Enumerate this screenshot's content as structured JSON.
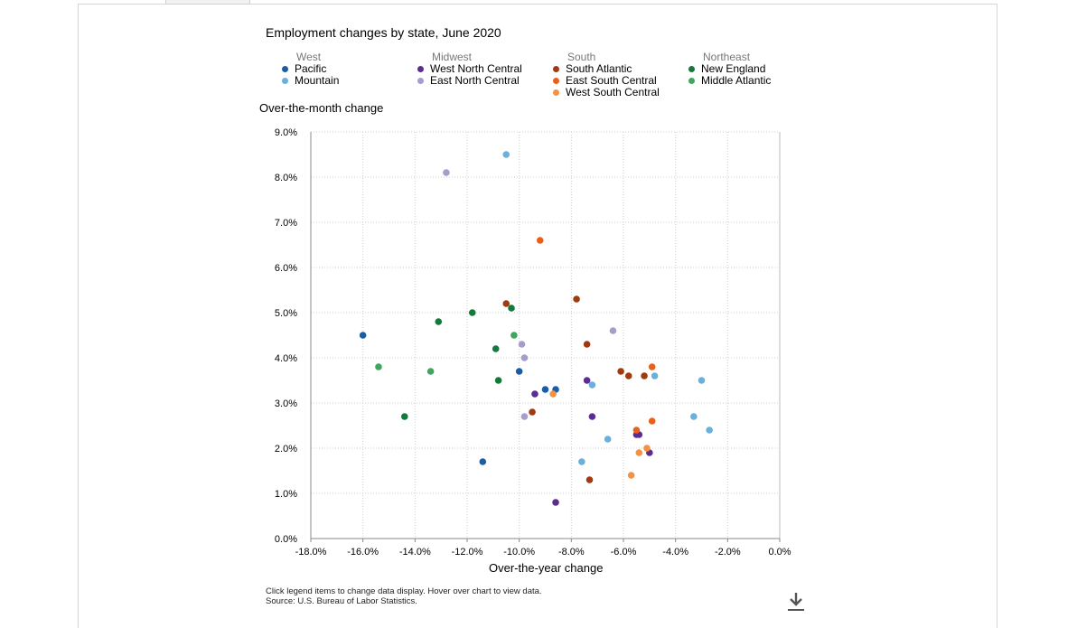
{
  "title": "Employment changes by state, June 2020",
  "legend": [
    {
      "group": "West",
      "items": [
        {
          "name": "Pacific",
          "color": "#1a5da6"
        },
        {
          "name": "Mountain",
          "color": "#6bb0dd"
        }
      ]
    },
    {
      "group": "Midwest",
      "items": [
        {
          "name": "West North Central",
          "color": "#5b2d91"
        },
        {
          "name": "East North Central",
          "color": "#a79ccc"
        }
      ]
    },
    {
      "group": "South",
      "items": [
        {
          "name": "South Atlantic",
          "color": "#a13a0f"
        },
        {
          "name": "East South Central",
          "color": "#e8601c"
        },
        {
          "name": "West South Central",
          "color": "#f39244"
        }
      ]
    },
    {
      "group": "Northeast",
      "items": [
        {
          "name": "New England",
          "color": "#137a3c"
        },
        {
          "name": "Middle Atlantic",
          "color": "#41a65d"
        }
      ]
    }
  ],
  "footnote": {
    "line1": "Click legend items to change data display. Hover over chart to view data.",
    "line2": "Source: U.S. Bureau of Labor Statistics."
  },
  "download_icon": "download-icon",
  "chart_data": {
    "type": "scatter",
    "title": "Employment changes by state, June 2020",
    "xlabel": "Over-the-year change",
    "ylabel": "Over-the-month change",
    "xlim": [
      -18,
      0
    ],
    "ylim": [
      0,
      9
    ],
    "xticks": [
      "-18.0%",
      "-16.0%",
      "-14.0%",
      "-12.0%",
      "-10.0%",
      "-8.0%",
      "-6.0%",
      "-4.0%",
      "-2.0%",
      "0.0%"
    ],
    "yticks": [
      "0.0%",
      "1.0%",
      "2.0%",
      "3.0%",
      "4.0%",
      "5.0%",
      "6.0%",
      "7.0%",
      "8.0%",
      "9.0%"
    ],
    "grid": true,
    "series": [
      {
        "name": "Pacific",
        "points": [
          [
            -16.0,
            4.5
          ],
          [
            -11.4,
            1.7
          ],
          [
            -10.0,
            3.7
          ],
          [
            -9.0,
            3.3
          ],
          [
            -8.6,
            3.3
          ]
        ]
      },
      {
        "name": "Mountain",
        "points": [
          [
            -10.5,
            8.5
          ],
          [
            -7.6,
            1.7
          ],
          [
            -7.2,
            3.4
          ],
          [
            -6.6,
            2.2
          ],
          [
            -4.8,
            3.6
          ],
          [
            -3.3,
            2.7
          ],
          [
            -3.0,
            3.5
          ],
          [
            -2.7,
            2.4
          ]
        ]
      },
      {
        "name": "West North Central",
        "points": [
          [
            -9.4,
            3.2
          ],
          [
            -8.6,
            0.8
          ],
          [
            -7.4,
            3.5
          ],
          [
            -7.2,
            2.7
          ],
          [
            -5.5,
            2.3
          ],
          [
            -5.4,
            2.3
          ],
          [
            -5.0,
            1.9
          ]
        ]
      },
      {
        "name": "East North Central",
        "points": [
          [
            -12.8,
            8.1
          ],
          [
            -9.9,
            4.3
          ],
          [
            -9.8,
            4.0
          ],
          [
            -9.8,
            2.7
          ],
          [
            -6.4,
            4.6
          ]
        ]
      },
      {
        "name": "South Atlantic",
        "points": [
          [
            -10.5,
            5.2
          ],
          [
            -9.5,
            2.8
          ],
          [
            -7.8,
            5.3
          ],
          [
            -7.4,
            4.3
          ],
          [
            -7.3,
            1.3
          ],
          [
            -6.1,
            3.7
          ],
          [
            -5.8,
            3.6
          ],
          [
            -5.2,
            3.6
          ]
        ]
      },
      {
        "name": "East South Central",
        "points": [
          [
            -9.2,
            6.6
          ],
          [
            -5.5,
            2.4
          ],
          [
            -4.9,
            3.8
          ],
          [
            -4.9,
            2.6
          ]
        ]
      },
      {
        "name": "West South Central",
        "points": [
          [
            -8.7,
            3.2
          ],
          [
            -5.7,
            1.4
          ],
          [
            -5.4,
            1.9
          ],
          [
            -5.1,
            2.0
          ]
        ]
      },
      {
        "name": "New England",
        "points": [
          [
            -14.4,
            2.7
          ],
          [
            -13.1,
            4.8
          ],
          [
            -11.8,
            5.0
          ],
          [
            -10.9,
            4.2
          ],
          [
            -10.8,
            3.5
          ],
          [
            -10.3,
            5.1
          ]
        ]
      },
      {
        "name": "Middle Atlantic",
        "points": [
          [
            -15.4,
            3.8
          ],
          [
            -13.4,
            3.7
          ],
          [
            -10.2,
            4.5
          ]
        ]
      }
    ]
  }
}
